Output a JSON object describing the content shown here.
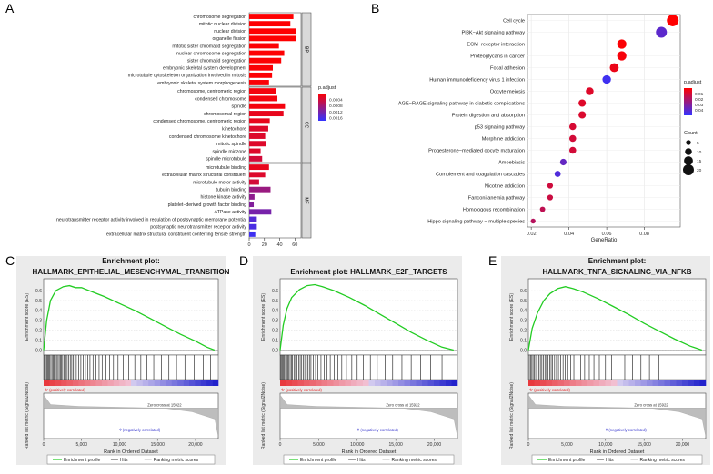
{
  "colors": {
    "high": "#ff0000",
    "low": "#3333ff",
    "gsea_line": "#22cc22",
    "panel_bg": "#ebebeb",
    "rank_fill": "#bdbdbd"
  },
  "panels": {
    "a": "A",
    "b": "B",
    "c": "C",
    "d": "D",
    "e": "E"
  },
  "chart_data": [
    {
      "id": "A",
      "type": "bar",
      "orientation": "horizontal",
      "groups": [
        {
          "name": "BP",
          "categories": [
            "chromosome segregation",
            "mitotic nuclear division",
            "nuclear division",
            "organelle fission",
            "mitotic sister chromatid segregation",
            "nuclear chromosome segregation",
            "sister chromatid segregation",
            "embryonic skeletal system development",
            "microtubule cytoskeleton organization involved in mitosis",
            "embryonic skeletal system morphogenesis"
          ],
          "values": [
            58,
            54,
            62,
            61,
            39,
            46,
            42,
            31,
            30,
            26
          ],
          "p_adjust": [
            1e-05,
            2e-05,
            1e-05,
            1e-05,
            3e-05,
            2e-05,
            3e-05,
            4e-05,
            3e-05,
            5e-05
          ]
        },
        {
          "name": "CC",
          "categories": [
            "chromosome, centromeric region",
            "condensed chromosome",
            "spindle",
            "chromosomal region",
            "condensed chromosome, centromeric region",
            "kinetochore",
            "condensed chromosome kinetochore",
            "mitotic spindle",
            "spindle midzone",
            "spindle microtubule"
          ],
          "values": [
            35,
            37,
            47,
            45,
            27,
            25,
            21,
            22,
            15,
            17
          ],
          "p_adjust": [
            0.0001,
            0.0001,
            0.0001,
            0.0002,
            0.0002,
            0.0003,
            0.0003,
            0.0003,
            0.0003,
            0.0004
          ]
        },
        {
          "name": "MF",
          "categories": [
            "microtubule binding",
            "extracellular matrix structural constituent",
            "microtubule motor activity",
            "tubulin binding",
            "histone kinase activity",
            "platelet−derived growth factor binding",
            "ATPase activity",
            "neurotransmitter receptor activity involved in regulation of postsynaptic membrane potential",
            "postsynaptic neurotransmitter receptor activity",
            "extracellular matrix structural constituent conferring tensile strength"
          ],
          "values": [
            26,
            21,
            13,
            28,
            7,
            6,
            29,
            10,
            10,
            8
          ],
          "p_adjust": [
            0.0002,
            0.0003,
            0.0004,
            0.0009,
            0.001,
            0.0011,
            0.0012,
            0.0015,
            0.0016,
            0.0017
          ]
        }
      ],
      "xlim": [
        0,
        68
      ],
      "xticks": [
        "0",
        "20",
        "40",
        "60"
      ],
      "legend": {
        "title": "p.adjust",
        "ticks": [
          "0.0004",
          "0.0008",
          "0.0012",
          "0.0016"
        ],
        "min": 0,
        "max": 0.0018
      }
    },
    {
      "id": "B",
      "type": "scatter",
      "categories": [
        "Cell cycle",
        "PI3K−Akt signaling pathway",
        "ECM−receptor interaction",
        "Proteoglycans in cancer",
        "Focal adhesion",
        "Human immunodeficiency virus 1 infection",
        "Oocyte meiosis",
        "AGE−RAGE signaling pathway in diabetic complications",
        "Protein digestion and absorption",
        "p53 signaling pathway",
        "Morphine addiction",
        "Progesterone−mediated oocyte maturation",
        "Amoebiasis",
        "Complement and coagulation cascades",
        "Nicotine addiction",
        "Fanconi anemia pathway",
        "Homologous recombination",
        "Hippo signaling pathway − multiple species"
      ],
      "x": [
        0.095,
        0.089,
        0.068,
        0.068,
        0.064,
        0.06,
        0.051,
        0.047,
        0.047,
        0.042,
        0.042,
        0.042,
        0.037,
        0.034,
        0.03,
        0.03,
        0.026,
        0.021
      ],
      "count": [
        22,
        20,
        16,
        16,
        15,
        14,
        12,
        11,
        11,
        10,
        10,
        10,
        9,
        8,
        7,
        7,
        6,
        5
      ],
      "p_adjust": [
        0.0001,
        0.04,
        0.001,
        0.002,
        0.005,
        0.047,
        0.008,
        0.008,
        0.009,
        0.01,
        0.011,
        0.011,
        0.038,
        0.043,
        0.012,
        0.013,
        0.016,
        0.018
      ],
      "xlabel": "GeneRatio",
      "xlim": [
        0.018,
        0.099
      ],
      "xticks": [
        0.02,
        0.04,
        0.06,
        0.08
      ],
      "xtick_labels": [
        "0.02",
        "0.04",
        "0.06",
        "0.08"
      ],
      "color_legend": {
        "title": "p.adjust",
        "ticks": [
          "0.01",
          "0.02",
          "0.03",
          "0.04"
        ],
        "min": 0,
        "max": 0.05
      },
      "size_legend": {
        "title": "Count",
        "values": [
          5,
          10,
          15,
          20
        ],
        "labels": [
          "5",
          "10",
          "15",
          "20"
        ]
      }
    },
    {
      "id": "C",
      "type": "line",
      "title": "Enrichment plot:",
      "subtitle": "HALLMARK_EPITHELIAL_MESENCHYMAL_TRANSITION",
      "es_points": [
        [
          0,
          0
        ],
        [
          400,
          0.3
        ],
        [
          900,
          0.5
        ],
        [
          1600,
          0.6
        ],
        [
          2600,
          0.64
        ],
        [
          3400,
          0.65
        ],
        [
          4200,
          0.63
        ],
        [
          5000,
          0.63
        ],
        [
          6000,
          0.6
        ],
        [
          8000,
          0.54
        ],
        [
          10000,
          0.47
        ],
        [
          12000,
          0.4
        ],
        [
          14000,
          0.32
        ],
        [
          16000,
          0.24
        ],
        [
          18000,
          0.16
        ],
        [
          20000,
          0.09
        ],
        [
          21500,
          0.03
        ],
        [
          22500,
          0.0
        ]
      ],
      "hits": [
        100,
        250,
        400,
        520,
        680,
        800,
        950,
        1100,
        1250,
        1400,
        1550,
        1700,
        1900,
        2050,
        2200,
        2350,
        2500,
        2700,
        2900,
        3100,
        3300,
        3500,
        3700,
        3900,
        4100,
        4300,
        4600,
        4900,
        5200,
        5500,
        5800,
        6100,
        6500,
        6900,
        7300,
        7700,
        8200,
        8700,
        9200,
        9800,
        10500,
        11200,
        12000,
        12800,
        13600,
        14500,
        15500,
        16500,
        17500,
        18600,
        19800,
        21000,
        22000
      ],
      "n_genes": 23000,
      "zero_cross": 15922,
      "ylim": [
        -0.05,
        0.72
      ],
      "yticks": [
        "0.0",
        "0.1",
        "0.2",
        "0.3",
        "0.4",
        "0.5",
        "0.6"
      ],
      "ylabel_top": "Enrichment score (ES)",
      "ylabel_bottom": "Ranked list metric (Signal2Noise)",
      "pos_label": "'h' (positively correlated)",
      "neg_label": "'l' (negatively correlated)",
      "zero_label": "Zero cross at 15922",
      "xlabel": "Rank in Ordered Dataset",
      "xticks": [
        "0",
        "5,000",
        "10,000",
        "15,000",
        "20,000"
      ],
      "legend": [
        "Enrichment profile",
        "Hits",
        "Ranking metric scores"
      ]
    },
    {
      "id": "D",
      "type": "line",
      "title": "Enrichment plot: HALLMARK_E2F_TARGETS",
      "subtitle": "",
      "es_points": [
        [
          0,
          0
        ],
        [
          400,
          0.25
        ],
        [
          900,
          0.42
        ],
        [
          1500,
          0.53
        ],
        [
          2500,
          0.61
        ],
        [
          3500,
          0.65
        ],
        [
          4500,
          0.66
        ],
        [
          5500,
          0.64
        ],
        [
          7000,
          0.6
        ],
        [
          9000,
          0.53
        ],
        [
          11000,
          0.45
        ],
        [
          13000,
          0.36
        ],
        [
          15000,
          0.27
        ],
        [
          17000,
          0.18
        ],
        [
          19000,
          0.1
        ],
        [
          21000,
          0.03
        ],
        [
          22500,
          0.0
        ]
      ],
      "hits": [
        50,
        150,
        300,
        420,
        550,
        700,
        850,
        1000,
        1150,
        1300,
        1450,
        1600,
        1800,
        2000,
        2200,
        2400,
        2600,
        2800,
        3000,
        3200,
        3400,
        3600,
        3800,
        4000,
        4300,
        4600,
        4900,
        5300,
        5700,
        6100,
        6500,
        7000,
        7500,
        8000,
        8600,
        9300,
        10000,
        10800,
        11700,
        12600,
        13600,
        14600,
        15800,
        17000,
        18200,
        19500,
        21000
      ],
      "n_genes": 23000,
      "zero_cross": 15922,
      "ylim": [
        -0.05,
        0.72
      ],
      "yticks": [
        "0.0",
        "0.1",
        "0.2",
        "0.3",
        "0.4",
        "0.5",
        "0.6"
      ],
      "ylabel_top": "Enrichment score (ES)",
      "ylabel_bottom": "Ranked list metric (Signal2Noise)",
      "pos_label": "'h' (positively correlated)",
      "neg_label": "'l' (negatively correlated)",
      "zero_label": "Zero cross at 15922",
      "xlabel": "Rank in Ordered Dataset",
      "xticks": [
        "0",
        "5,000",
        "10,000",
        "15,000",
        "20,000"
      ],
      "legend": [
        "Enrichment profile",
        "Hits",
        "Ranking metric scores"
      ]
    },
    {
      "id": "E",
      "type": "line",
      "title": "Enrichment plot:",
      "subtitle": "HALLMARK_TNFA_SIGNALING_VIA_NFKB",
      "es_points": [
        [
          0,
          0
        ],
        [
          500,
          0.22
        ],
        [
          1200,
          0.38
        ],
        [
          2000,
          0.5
        ],
        [
          2800,
          0.57
        ],
        [
          3800,
          0.62
        ],
        [
          4800,
          0.64
        ],
        [
          5800,
          0.62
        ],
        [
          7000,
          0.59
        ],
        [
          9000,
          0.52
        ],
        [
          11000,
          0.44
        ],
        [
          13000,
          0.36
        ],
        [
          15000,
          0.27
        ],
        [
          17000,
          0.19
        ],
        [
          19000,
          0.11
        ],
        [
          21000,
          0.04
        ],
        [
          22500,
          0.0
        ]
      ],
      "hits": [
        120,
        300,
        450,
        600,
        780,
        950,
        1150,
        1350,
        1550,
        1750,
        1950,
        2150,
        2350,
        2550,
        2750,
        2950,
        3150,
        3400,
        3650,
        3900,
        4200,
        4500,
        4800,
        5100,
        5500,
        5900,
        6300,
        6800,
        7300,
        7900,
        8500,
        9200,
        10000,
        10800,
        11600,
        12500,
        13500,
        14600,
        15700,
        16900,
        18100,
        19400,
        20700,
        22000
      ],
      "n_genes": 23000,
      "zero_cross": 15922,
      "ylim": [
        -0.05,
        0.72
      ],
      "yticks": [
        "0.0",
        "0.1",
        "0.2",
        "0.3",
        "0.4",
        "0.5",
        "0.6"
      ],
      "ylabel_top": "Enrichment score (ES)",
      "ylabel_bottom": "Ranked list metric (Signal2Noise)",
      "pos_label": "'h' (positively correlated)",
      "neg_label": "'l' (negatively correlated)",
      "zero_label": "Zero cross at 15922",
      "xlabel": "Rank in Ordered Dataset",
      "xticks": [
        "0",
        "5,000",
        "10,000",
        "15,000",
        "20,000"
      ],
      "legend": [
        "Enrichment profile",
        "Hits",
        "Ranking metric scores"
      ]
    }
  ]
}
